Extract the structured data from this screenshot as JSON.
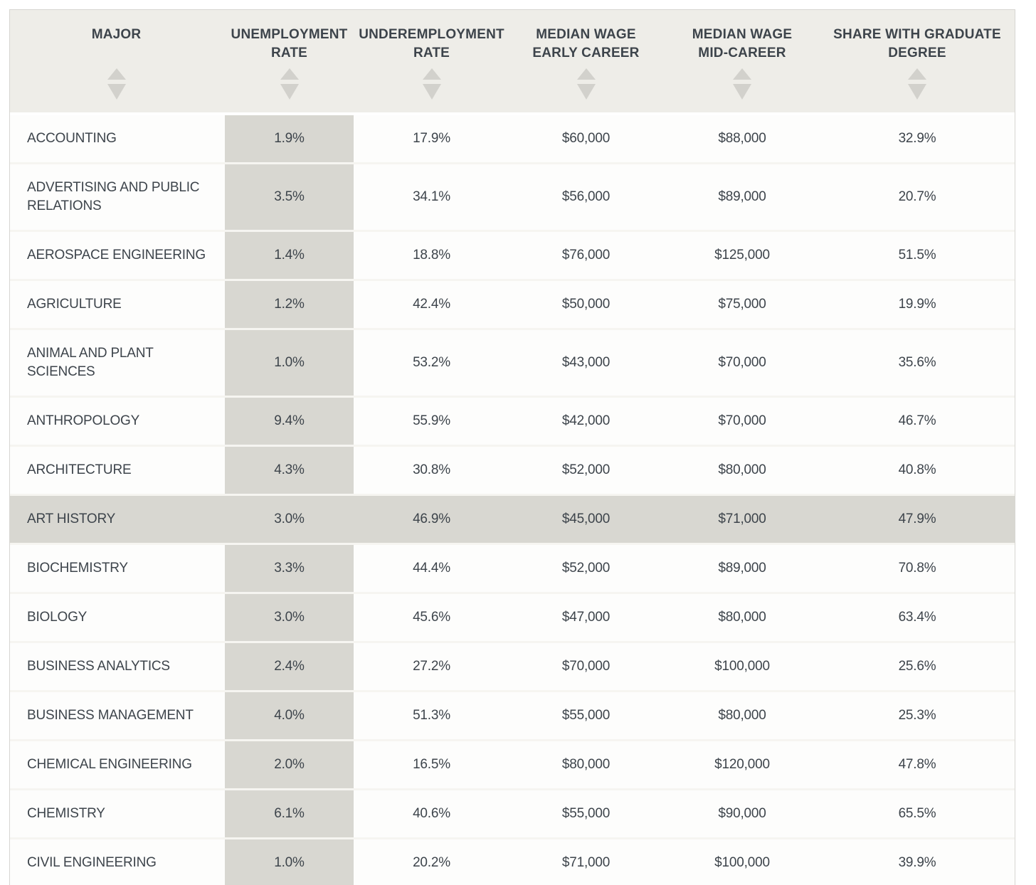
{
  "table": {
    "columns": [
      {
        "key": "major",
        "label": "MAJOR",
        "sortable": true
      },
      {
        "key": "unemployment_rate",
        "label": "UNEMPLOYMENT\nRATE",
        "sortable": true
      },
      {
        "key": "underemployment_rate",
        "label": "UNDEREMPLOYMENT\nRATE",
        "sortable": true
      },
      {
        "key": "median_wage_early_career",
        "label": "MEDIAN WAGE\nEARLY CAREER",
        "sortable": true
      },
      {
        "key": "median_wage_mid_career",
        "label": "MEDIAN WAGE\nMID-CAREER",
        "sortable": true
      },
      {
        "key": "share_with_graduate_degree",
        "label": "SHARE WITH GRADUATE\nDEGREE",
        "sortable": true
      }
    ],
    "highlighted_major": "ART HISTORY",
    "rows": [
      {
        "major": "ACCOUNTING",
        "unemployment_rate": "1.9%",
        "underemployment_rate": "17.9%",
        "median_wage_early_career": "$60,000",
        "median_wage_mid_career": "$88,000",
        "share_with_graduate_degree": "32.9%"
      },
      {
        "major": "ADVERTISING AND PUBLIC RELATIONS",
        "unemployment_rate": "3.5%",
        "underemployment_rate": "34.1%",
        "median_wage_early_career": "$56,000",
        "median_wage_mid_career": "$89,000",
        "share_with_graduate_degree": "20.7%"
      },
      {
        "major": "AEROSPACE ENGINEERING",
        "unemployment_rate": "1.4%",
        "underemployment_rate": "18.8%",
        "median_wage_early_career": "$76,000",
        "median_wage_mid_career": "$125,000",
        "share_with_graduate_degree": "51.5%"
      },
      {
        "major": "AGRICULTURE",
        "unemployment_rate": "1.2%",
        "underemployment_rate": "42.4%",
        "median_wage_early_career": "$50,000",
        "median_wage_mid_career": "$75,000",
        "share_with_graduate_degree": "19.9%"
      },
      {
        "major": "ANIMAL AND PLANT SCIENCES",
        "unemployment_rate": "1.0%",
        "underemployment_rate": "53.2%",
        "median_wage_early_career": "$43,000",
        "median_wage_mid_career": "$70,000",
        "share_with_graduate_degree": "35.6%"
      },
      {
        "major": "ANTHROPOLOGY",
        "unemployment_rate": "9.4%",
        "underemployment_rate": "55.9%",
        "median_wage_early_career": "$42,000",
        "median_wage_mid_career": "$70,000",
        "share_with_graduate_degree": "46.7%"
      },
      {
        "major": "ARCHITECTURE",
        "unemployment_rate": "4.3%",
        "underemployment_rate": "30.8%",
        "median_wage_early_career": "$52,000",
        "median_wage_mid_career": "$80,000",
        "share_with_graduate_degree": "40.8%"
      },
      {
        "major": "ART HISTORY",
        "unemployment_rate": "3.0%",
        "underemployment_rate": "46.9%",
        "median_wage_early_career": "$45,000",
        "median_wage_mid_career": "$71,000",
        "share_with_graduate_degree": "47.9%"
      },
      {
        "major": "BIOCHEMISTRY",
        "unemployment_rate": "3.3%",
        "underemployment_rate": "44.4%",
        "median_wage_early_career": "$52,000",
        "median_wage_mid_career": "$89,000",
        "share_with_graduate_degree": "70.8%"
      },
      {
        "major": "BIOLOGY",
        "unemployment_rate": "3.0%",
        "underemployment_rate": "45.6%",
        "median_wage_early_career": "$47,000",
        "median_wage_mid_career": "$80,000",
        "share_with_graduate_degree": "63.4%"
      },
      {
        "major": "BUSINESS ANALYTICS",
        "unemployment_rate": "2.4%",
        "underemployment_rate": "27.2%",
        "median_wage_early_career": "$70,000",
        "median_wage_mid_career": "$100,000",
        "share_with_graduate_degree": "25.6%"
      },
      {
        "major": "BUSINESS MANAGEMENT",
        "unemployment_rate": "4.0%",
        "underemployment_rate": "51.3%",
        "median_wage_early_career": "$55,000",
        "median_wage_mid_career": "$80,000",
        "share_with_graduate_degree": "25.3%"
      },
      {
        "major": "CHEMICAL ENGINEERING",
        "unemployment_rate": "2.0%",
        "underemployment_rate": "16.5%",
        "median_wage_early_career": "$80,000",
        "median_wage_mid_career": "$120,000",
        "share_with_graduate_degree": "47.8%"
      },
      {
        "major": "CHEMISTRY",
        "unemployment_rate": "6.1%",
        "underemployment_rate": "40.6%",
        "median_wage_early_career": "$55,000",
        "median_wage_mid_career": "$90,000",
        "share_with_graduate_degree": "65.5%"
      },
      {
        "major": "CIVIL ENGINEERING",
        "unemployment_rate": "1.0%",
        "underemployment_rate": "20.2%",
        "median_wage_early_career": "$71,000",
        "median_wage_mid_career": "$100,000",
        "share_with_graduate_degree": "39.9%"
      }
    ]
  },
  "icons": {
    "sort_ascending": "sort-up-icon",
    "sort_descending": "sort-down-icon"
  },
  "colors": {
    "header_bg": "#eeede8",
    "row_bg": "#fdfdfc",
    "cell_gray": "#d8d7d1",
    "highlight_row": "#d8d7d1",
    "text": "#3d444b",
    "arrow": "#d2d1cc",
    "separator": "#f6f5f1",
    "border": "#d7d6d2"
  }
}
